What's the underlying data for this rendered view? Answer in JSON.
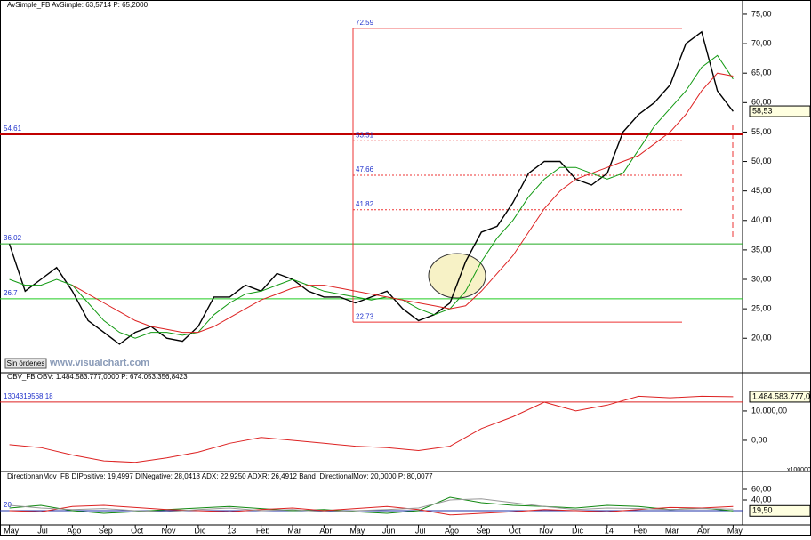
{
  "ui": {
    "button": "Sin órdenes",
    "watermark": "www.visualchart.com",
    "scale_note": "x100000"
  },
  "chart_data": [
    {
      "type": "line",
      "title": "AvSimple_FB  AvSimple: 63,5714  P: 65,2000",
      "x": [
        0,
        0.5,
        1,
        1.5,
        2,
        2.5,
        3,
        3.5,
        4,
        4.5,
        5,
        5.5,
        6,
        6.5,
        7,
        7.5,
        8,
        8.5,
        9,
        9.5,
        10,
        10.5,
        11,
        11.5,
        12,
        12.5,
        13,
        13.5,
        14,
        14.5,
        15,
        15.5,
        16,
        16.5,
        17,
        17.5,
        18,
        18.5,
        19,
        19.5,
        20,
        20.5,
        21,
        21.5,
        22,
        22.5,
        23
      ],
      "xlim": [
        -0.3,
        23.3
      ],
      "series": [
        {
          "color": "#000000",
          "values": [
            36,
            28,
            30,
            32,
            28,
            23,
            21,
            19,
            21,
            22,
            20,
            19.5,
            22,
            27,
            27,
            29,
            28,
            31,
            30,
            28,
            27,
            27,
            26,
            27,
            28,
            25,
            23,
            24,
            26,
            33,
            38,
            39,
            43,
            48,
            50,
            50,
            47,
            46,
            48,
            55,
            58,
            60,
            63,
            70,
            72,
            62,
            58.5
          ]
        },
        {
          "color": "#119911",
          "values": [
            30,
            29,
            29,
            30,
            29,
            26,
            23,
            21,
            20,
            21,
            21,
            20.5,
            21,
            24,
            26,
            27.5,
            28,
            29,
            30,
            29,
            28,
            27.5,
            27,
            26.5,
            27,
            26.5,
            25,
            24,
            25,
            28,
            33,
            37,
            40,
            44,
            47,
            49,
            49,
            48,
            47,
            48,
            52,
            56,
            59,
            62,
            66,
            68,
            64
          ]
        },
        {
          "color": "#dd2222",
          "values": [
            null,
            null,
            null,
            null,
            29,
            27.5,
            26,
            24.5,
            23,
            22,
            21.5,
            21,
            21,
            22,
            23.5,
            25,
            26.5,
            27.5,
            28.5,
            29,
            29,
            28.5,
            28,
            27.5,
            27,
            26.5,
            26,
            25.5,
            25,
            25.5,
            28,
            31,
            34,
            38,
            42,
            45,
            47,
            48,
            49,
            50,
            51,
            53,
            55,
            58,
            62,
            65,
            64.5
          ]
        }
      ],
      "ylim": [
        14.3,
        75.9
      ],
      "yticks": [
        {
          "value": 75,
          "label": "75,00"
        },
        {
          "value": 70,
          "label": "70,00"
        },
        {
          "value": 65,
          "label": "65,00"
        },
        {
          "value": 60,
          "label": "60,00"
        },
        {
          "value": 55,
          "label": "55,00"
        },
        {
          "value": 50,
          "label": "50,00"
        },
        {
          "value": 45,
          "label": "45,00"
        },
        {
          "value": 40,
          "label": "40,00"
        },
        {
          "value": 35,
          "label": "35,00"
        },
        {
          "value": 30,
          "label": "30,00"
        },
        {
          "value": 25,
          "label": "25,00"
        },
        {
          "value": 20,
          "label": "20,00"
        }
      ],
      "levels": [
        {
          "value": 54.61,
          "color": "#c00000"
        },
        {
          "value": 36.02,
          "color": "#22aa22"
        },
        {
          "value": 26.7,
          "color": "#22cc22"
        }
      ],
      "fib_top": 72.59,
      "fib_bottom": 22.73,
      "fib_levels": [
        53.51,
        47.66,
        41.82
      ],
      "current": {
        "value": 58.53,
        "label": "58,53"
      }
    },
    {
      "type": "line",
      "title": "OBV_FB  OBV: 1.484.583.777,0000  P: 674.053.356,8423",
      "x": [
        0,
        1,
        2,
        3,
        4,
        5,
        6,
        7,
        8,
        9,
        10,
        11,
        12,
        13,
        14,
        15,
        16,
        17,
        18,
        19,
        20,
        21,
        22,
        23
      ],
      "xlim": [
        -0.3,
        23.3
      ],
      "series": [
        {
          "color": "#dd2222",
          "values": [
            -150000000,
            -250000000,
            -500000000,
            -700000000,
            -750000000,
            -600000000,
            -400000000,
            -100000000,
            100000000,
            0,
            -100000000,
            -200000000,
            -250000000,
            -350000000,
            -200000000,
            400000000,
            800000000,
            1300000000,
            1000000000,
            1200000000,
            1500000000,
            1450000000,
            1500000000,
            1484583777
          ]
        }
      ],
      "ylim": [
        -970000000,
        2270000000
      ],
      "yticks": [
        {
          "value": 1000000000,
          "label": "10.000,00"
        },
        {
          "value": 0,
          "label": "0,00"
        }
      ],
      "levels": [
        {
          "value": 1304319568.18,
          "color": "#dd2222"
        }
      ],
      "current": {
        "value": 1484583777,
        "label": "1.484.583.777,0"
      }
    },
    {
      "type": "line",
      "title": "DirectionanMov_FB  DIPositive: 19,4997  DINegative: 28,0418  ADX: 22,9250  ADXR: 26,4912  Band_DirectionalMov: 20,0000  P: 80,0077",
      "x": [
        0,
        1,
        2,
        3,
        4,
        5,
        6,
        7,
        8,
        9,
        10,
        11,
        12,
        13,
        14,
        15,
        16,
        17,
        18,
        19,
        20,
        21,
        22,
        23
      ],
      "xlim": [
        -0.3,
        23.3
      ],
      "xticks": [
        {
          "value": 0,
          "label": "May"
        },
        {
          "value": 1,
          "label": "Jul"
        },
        {
          "value": 2,
          "label": "Ago"
        },
        {
          "value": 3,
          "label": "Sep"
        },
        {
          "value": 4,
          "label": "Oct"
        },
        {
          "value": 5,
          "label": "Nov"
        },
        {
          "value": 6,
          "label": "Dic"
        },
        {
          "value": 7,
          "label": "13"
        },
        {
          "value": 8,
          "label": "Feb"
        },
        {
          "value": 9,
          "label": "Mar"
        },
        {
          "value": 10,
          "label": "Abr"
        },
        {
          "value": 11,
          "label": "May"
        },
        {
          "value": 12,
          "label": "Jun"
        },
        {
          "value": 13,
          "label": "Jul"
        },
        {
          "value": 14,
          "label": "Ago"
        },
        {
          "value": 15,
          "label": "Sep"
        },
        {
          "value": 16,
          "label": "Oct"
        },
        {
          "value": 17,
          "label": "Nov"
        },
        {
          "value": 18,
          "label": "Dic"
        },
        {
          "value": 19,
          "label": "14"
        },
        {
          "value": 20,
          "label": "Feb"
        },
        {
          "value": 21,
          "label": "Mar"
        },
        {
          "value": 22,
          "label": "Abr"
        },
        {
          "value": 23,
          "label": "May"
        }
      ],
      "series": [
        {
          "color": "#118811",
          "values": [
            25,
            30,
            20,
            15,
            18,
            22,
            25,
            28,
            24,
            20,
            22,
            18,
            15,
            20,
            45,
            35,
            30,
            28,
            25,
            30,
            28,
            22,
            25,
            19.5
          ]
        },
        {
          "color": "#dd2222",
          "values": [
            20,
            18,
            28,
            30,
            26,
            22,
            20,
            18,
            22,
            25,
            20,
            24,
            28,
            22,
            12,
            15,
            18,
            22,
            20,
            18,
            22,
            26,
            25,
            28
          ]
        },
        {
          "color": "#999999",
          "values": [
            30,
            25,
            22,
            24,
            20,
            18,
            22,
            25,
            20,
            22,
            18,
            20,
            22,
            25,
            40,
            42,
            35,
            28,
            22,
            25,
            24,
            22,
            24,
            22.9
          ]
        }
      ],
      "ylim": [
        -6.7,
        90
      ],
      "yticks": [
        {
          "value": 60,
          "label": "60,00"
        },
        {
          "value": 40,
          "label": "40,00"
        }
      ],
      "levels": [
        {
          "value": 20,
          "color": "#2233aa"
        }
      ],
      "current": {
        "value": 19.5,
        "label": "19,50"
      }
    }
  ]
}
